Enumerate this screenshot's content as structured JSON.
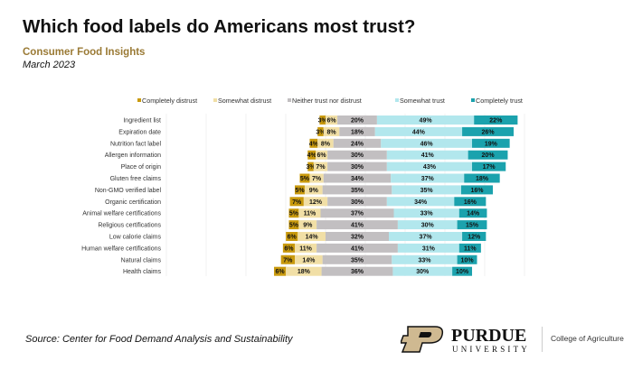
{
  "title": "Which food labels do Americans most trust?",
  "subtitle": "Consumer Food Insights",
  "date": "March 2023",
  "source": "Source:  Center for Food Demand Analysis and Sustainability",
  "logo": {
    "name": "PURDUE",
    "sub": "UNIVERSITY",
    "college": "College of Agriculture"
  },
  "chart_data": {
    "type": "bar",
    "orientation": "horizontal",
    "stacking": "diverging",
    "legend_position": "top",
    "grid": false,
    "categories": [
      "Ingredient list",
      "Expiration date",
      "Nutrition fact label",
      "Allergen information",
      "Place of origin",
      "Gluten free claims",
      "Non-GMO verified label",
      "Organic certification",
      "Animal welfare certifications",
      "Religious certifications",
      "Low calorie claims",
      "Human welfare certifications",
      "Natural claims",
      "Health claims"
    ],
    "series": [
      {
        "name": "Completely distrust",
        "color": "#c99a0e",
        "values": [
          3,
          3,
          4,
          4,
          3,
          5,
          5,
          7,
          5,
          5,
          6,
          6,
          7,
          6
        ]
      },
      {
        "name": "Somewhat distrust",
        "color": "#f1dfa6",
        "values": [
          6,
          8,
          8,
          6,
          7,
          7,
          9,
          12,
          11,
          9,
          14,
          11,
          14,
          18
        ]
      },
      {
        "name": "Neither trust nor distrust",
        "color": "#c2bfc1",
        "values": [
          20,
          18,
          24,
          30,
          30,
          34,
          35,
          30,
          37,
          41,
          32,
          41,
          35,
          36
        ]
      },
      {
        "name": "Somewhat trust",
        "color": "#b2e7ed",
        "values": [
          49,
          44,
          46,
          41,
          43,
          37,
          35,
          34,
          33,
          30,
          37,
          31,
          33,
          30
        ]
      },
      {
        "name": "Completely trust",
        "color": "#1ba2ad",
        "values": [
          22,
          26,
          19,
          20,
          17,
          18,
          16,
          16,
          14,
          15,
          12,
          11,
          10,
          10
        ]
      }
    ]
  }
}
